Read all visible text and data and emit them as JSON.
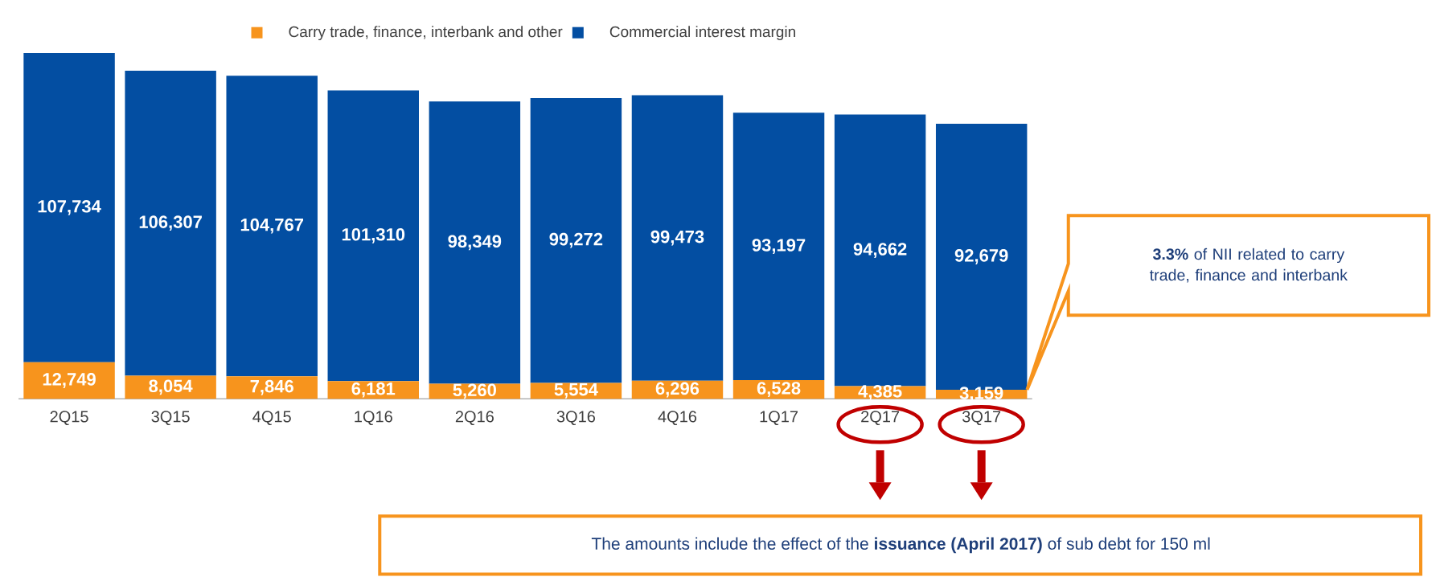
{
  "chart_data": {
    "type": "bar",
    "stacked": true,
    "categories": [
      "2Q15",
      "3Q15",
      "4Q15",
      "1Q16",
      "2Q16",
      "3Q16",
      "4Q16",
      "1Q17",
      "2Q17",
      "3Q17"
    ],
    "series": [
      {
        "name": "Carry trade, finance, interbank and other",
        "color": "#f7941d",
        "values": [
          12749,
          8054,
          7846,
          6181,
          5260,
          5554,
          6296,
          6528,
          4385,
          3159
        ],
        "value_labels": [
          "12,749",
          "8,054",
          "7,846",
          "6,181",
          "5,260",
          "5,554",
          "6,296",
          "6,528",
          "4,385",
          "3,159"
        ]
      },
      {
        "name": "Commercial interest margin",
        "color": "#034ea2",
        "values": [
          107734,
          106307,
          104767,
          101310,
          98349,
          99272,
          99473,
          93197,
          94662,
          92679
        ],
        "value_labels": [
          "107,734",
          "106,307",
          "104,767",
          "101,310",
          "98,349",
          "99,272",
          "99,473",
          "93,197",
          "94,662",
          "92,679"
        ]
      }
    ],
    "legend": "top",
    "annotations": [
      "**3.3%** of NII related to carry trade, finance and interbank",
      "The amounts include the effect of the **issuance (April 2017)** of sub debt for 150 ml"
    ]
  }
}
